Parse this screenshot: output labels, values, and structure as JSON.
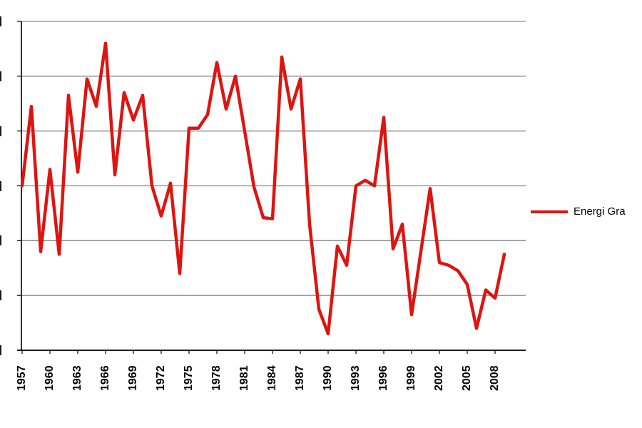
{
  "chart_data": {
    "type": "line",
    "title": "",
    "xlabel": "",
    "ylabel": "",
    "x": [
      1957,
      1958,
      1959,
      1960,
      1961,
      1962,
      1963,
      1964,
      1965,
      1966,
      1967,
      1968,
      1969,
      1970,
      1971,
      1972,
      1973,
      1974,
      1975,
      1976,
      1977,
      1978,
      1979,
      1980,
      1981,
      1982,
      1983,
      1984,
      1985,
      1986,
      1987,
      1988,
      1989,
      1990,
      1991,
      1992,
      1993,
      1994,
      1995,
      1996,
      1997,
      1998,
      1999,
      2000,
      2001,
      2002,
      2003,
      2004,
      2005,
      2006,
      2007,
      2008,
      2009
    ],
    "x_tick_labels": [
      "1957",
      "1960",
      "1963",
      "1966",
      "1969",
      "1972",
      "1975",
      "1978",
      "1981",
      "1984",
      "1987",
      "1990",
      "1993",
      "1996",
      "1999",
      "2002",
      "2005",
      "2008"
    ],
    "series": [
      {
        "name": "Energi Gra",
        "color": "#dd1510",
        "values": [
          3.0,
          4.45,
          1.8,
          3.3,
          1.75,
          4.65,
          3.25,
          4.95,
          4.45,
          5.6,
          3.2,
          4.7,
          4.2,
          4.65,
          3.0,
          2.45,
          3.05,
          1.4,
          4.05,
          4.05,
          4.3,
          5.25,
          4.4,
          5.0,
          4.0,
          2.98,
          2.42,
          2.4,
          5.35,
          4.4,
          4.95,
          2.3,
          0.75,
          0.3,
          1.9,
          1.55,
          3.0,
          3.1,
          3.0,
          4.25,
          1.85,
          2.3,
          0.65,
          1.8,
          2.95,
          1.6,
          1.55,
          1.45,
          1.2,
          0.4,
          1.1,
          0.95,
          1.75
        ],
        "values_unit": "gridline intervals above x-axis (y-axis numeric labels are cropped off the left edge of the screenshot)"
      }
    ],
    "ylim": [
      0,
      6
    ],
    "y_gridline_values": [
      0,
      1,
      2,
      3,
      4,
      5,
      6
    ],
    "grid": true,
    "legend_position": "right"
  },
  "colors": {
    "line": "#dd1510",
    "gridline": "#8c8c8c",
    "axis": "#000000",
    "text": "#000000",
    "background": "#ffffff"
  }
}
